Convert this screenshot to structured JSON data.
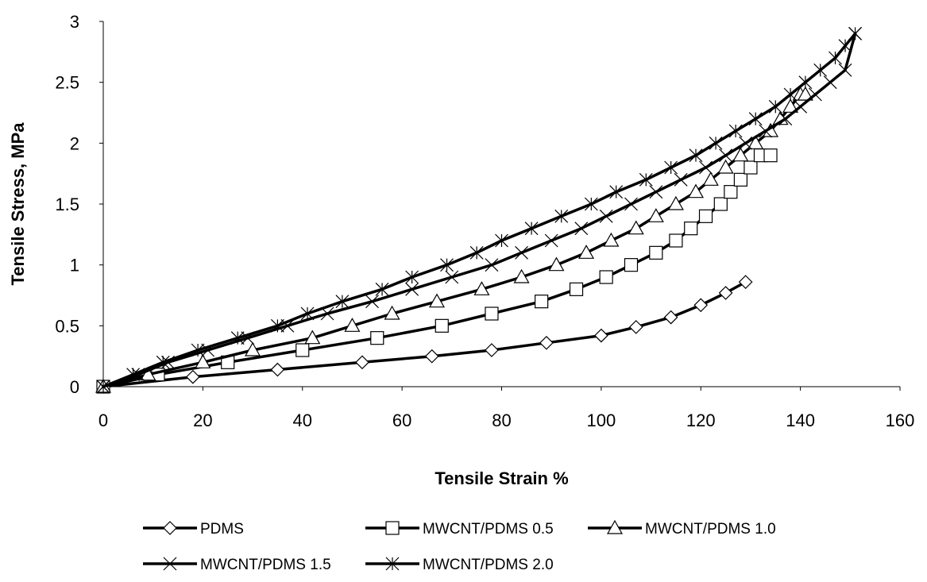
{
  "chart_data": {
    "type": "line",
    "title": "",
    "xlabel": "Tensile Strain %",
    "ylabel": "Tensile Stress, MPa",
    "xlim": [
      0,
      160
    ],
    "ylim": [
      0,
      3
    ],
    "xticks": [
      0,
      20,
      40,
      60,
      80,
      100,
      120,
      140,
      160
    ],
    "yticks": [
      0,
      0.5,
      1,
      1.5,
      2,
      2.5,
      3
    ],
    "grid": false,
    "legend_position": "bottom",
    "series": [
      {
        "name": "PDMS",
        "marker": "diamond",
        "x": [
          0,
          18,
          35,
          52,
          66,
          78,
          89,
          100,
          107,
          114,
          120,
          125,
          129
        ],
        "y": [
          0,
          0.08,
          0.14,
          0.2,
          0.25,
          0.3,
          0.36,
          0.42,
          0.49,
          0.57,
          0.67,
          0.77,
          0.86
        ]
      },
      {
        "name": "MWCNT/PDMS 0.5",
        "marker": "square",
        "x": [
          0,
          11,
          25,
          40,
          55,
          68,
          78,
          88,
          95,
          101,
          106,
          111,
          115,
          118,
          121,
          124,
          126,
          128,
          130,
          132,
          134
        ],
        "y": [
          0,
          0.1,
          0.2,
          0.3,
          0.4,
          0.5,
          0.6,
          0.7,
          0.8,
          0.9,
          1.0,
          1.1,
          1.2,
          1.3,
          1.4,
          1.5,
          1.6,
          1.7,
          1.8,
          1.9,
          1.9
        ]
      },
      {
        "name": "MWCNT/PDMS 1.0",
        "marker": "triangle",
        "x": [
          0,
          9,
          20,
          30,
          42,
          50,
          58,
          67,
          76,
          84,
          91,
          97,
          102,
          107,
          111,
          115,
          119,
          122,
          125,
          128,
          131,
          134,
          136,
          138,
          140,
          141
        ],
        "y": [
          0,
          0.1,
          0.2,
          0.3,
          0.4,
          0.5,
          0.6,
          0.7,
          0.8,
          0.9,
          1.0,
          1.1,
          1.2,
          1.3,
          1.4,
          1.5,
          1.6,
          1.7,
          1.8,
          1.9,
          2.0,
          2.1,
          2.2,
          2.3,
          2.4,
          2.4
        ]
      },
      {
        "name": "MWCNT/PDMS 1.5",
        "marker": "x",
        "x": [
          0,
          7,
          13,
          21,
          29,
          37,
          45,
          54,
          62,
          70,
          78,
          84,
          90,
          96,
          101,
          106,
          111,
          116,
          121,
          125,
          129,
          133,
          137,
          140,
          143,
          146,
          149,
          151
        ],
        "y": [
          0,
          0.1,
          0.2,
          0.3,
          0.4,
          0.5,
          0.6,
          0.7,
          0.8,
          0.9,
          1.0,
          1.1,
          1.2,
          1.3,
          1.4,
          1.5,
          1.6,
          1.7,
          1.8,
          1.9,
          2.0,
          2.1,
          2.2,
          2.3,
          2.4,
          2.5,
          2.6,
          2.9
        ]
      },
      {
        "name": "MWCNT/PDMS 2.0",
        "marker": "star",
        "x": [
          0,
          6,
          12,
          19,
          27,
          35,
          41,
          48,
          56,
          62,
          69,
          75,
          80,
          86,
          92,
          98,
          103,
          109,
          114,
          119,
          123,
          127,
          131,
          135,
          138,
          141,
          144,
          147,
          149,
          151
        ],
        "y": [
          0,
          0.1,
          0.2,
          0.3,
          0.4,
          0.5,
          0.6,
          0.7,
          0.8,
          0.9,
          1.0,
          1.1,
          1.2,
          1.3,
          1.4,
          1.5,
          1.6,
          1.7,
          1.8,
          1.9,
          2.0,
          2.1,
          2.2,
          2.3,
          2.4,
          2.5,
          2.6,
          2.7,
          2.8,
          2.9
        ]
      }
    ]
  }
}
